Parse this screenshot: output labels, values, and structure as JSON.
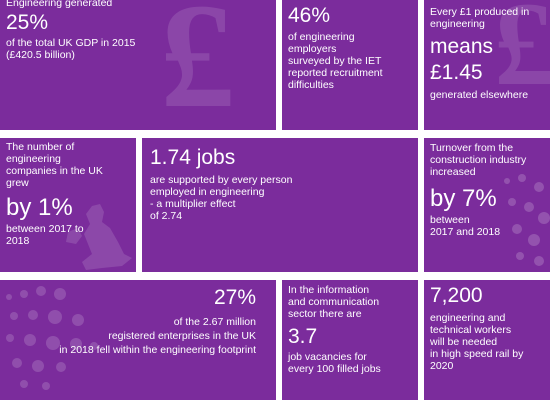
{
  "tiles": {
    "gdp": {
      "line1": "Engineering generated",
      "big": "25%",
      "line2": "of the total UK GDP in 2015",
      "line3": "(£420.5 billion)"
    },
    "employers": {
      "big": "46%",
      "lines": [
        "of engineering",
        "employers",
        "surveyed by the IET",
        "reported recruitment",
        "difficulties"
      ]
    },
    "pound": {
      "lines": [
        "Every £1 produced in",
        "engineering"
      ],
      "big1": "means",
      "big2": "£1.45",
      "line_after": "generated elsewhere"
    },
    "companies": {
      "lines": [
        "The number of",
        "engineering",
        "companies in the UK",
        "grew"
      ],
      "big": "by 1%",
      "lines_after": [
        "between 2017 to",
        "2018"
      ]
    },
    "jobs": {
      "big": "1.74 jobs",
      "lines": [
        "are supported by every person",
        "employed in engineering",
        "- a multiplier effect",
        "of 2.74"
      ]
    },
    "turnover": {
      "lines": [
        "Turnover from the",
        "construction industry",
        "increased"
      ],
      "big": "by 7%",
      "lines_after": [
        "between",
        "2017 and 2018"
      ]
    },
    "enterprises": {
      "big": "27%",
      "lines": [
        "of the 2.67 million",
        "registered enterprises in the UK",
        "in 2018 fell within the engineering footprint"
      ]
    },
    "vacancies": {
      "lines": [
        "In the information",
        "and communication",
        "sector there are"
      ],
      "big": "3.7",
      "lines_after": [
        "job vacancies for",
        "every 100 filled jobs"
      ]
    },
    "rail": {
      "big": "7,200",
      "lines": [
        "engineering and",
        "technical workers",
        "will be needed",
        "in high speed rail by",
        "2020"
      ]
    }
  },
  "colors": {
    "tile": "#7b2c9c",
    "background": "#ffffff",
    "text": "#ffffff"
  },
  "icons": [
    "pound-sign-watermark-icon",
    "uk-map-watermark-icon",
    "dot-pattern-icon"
  ]
}
